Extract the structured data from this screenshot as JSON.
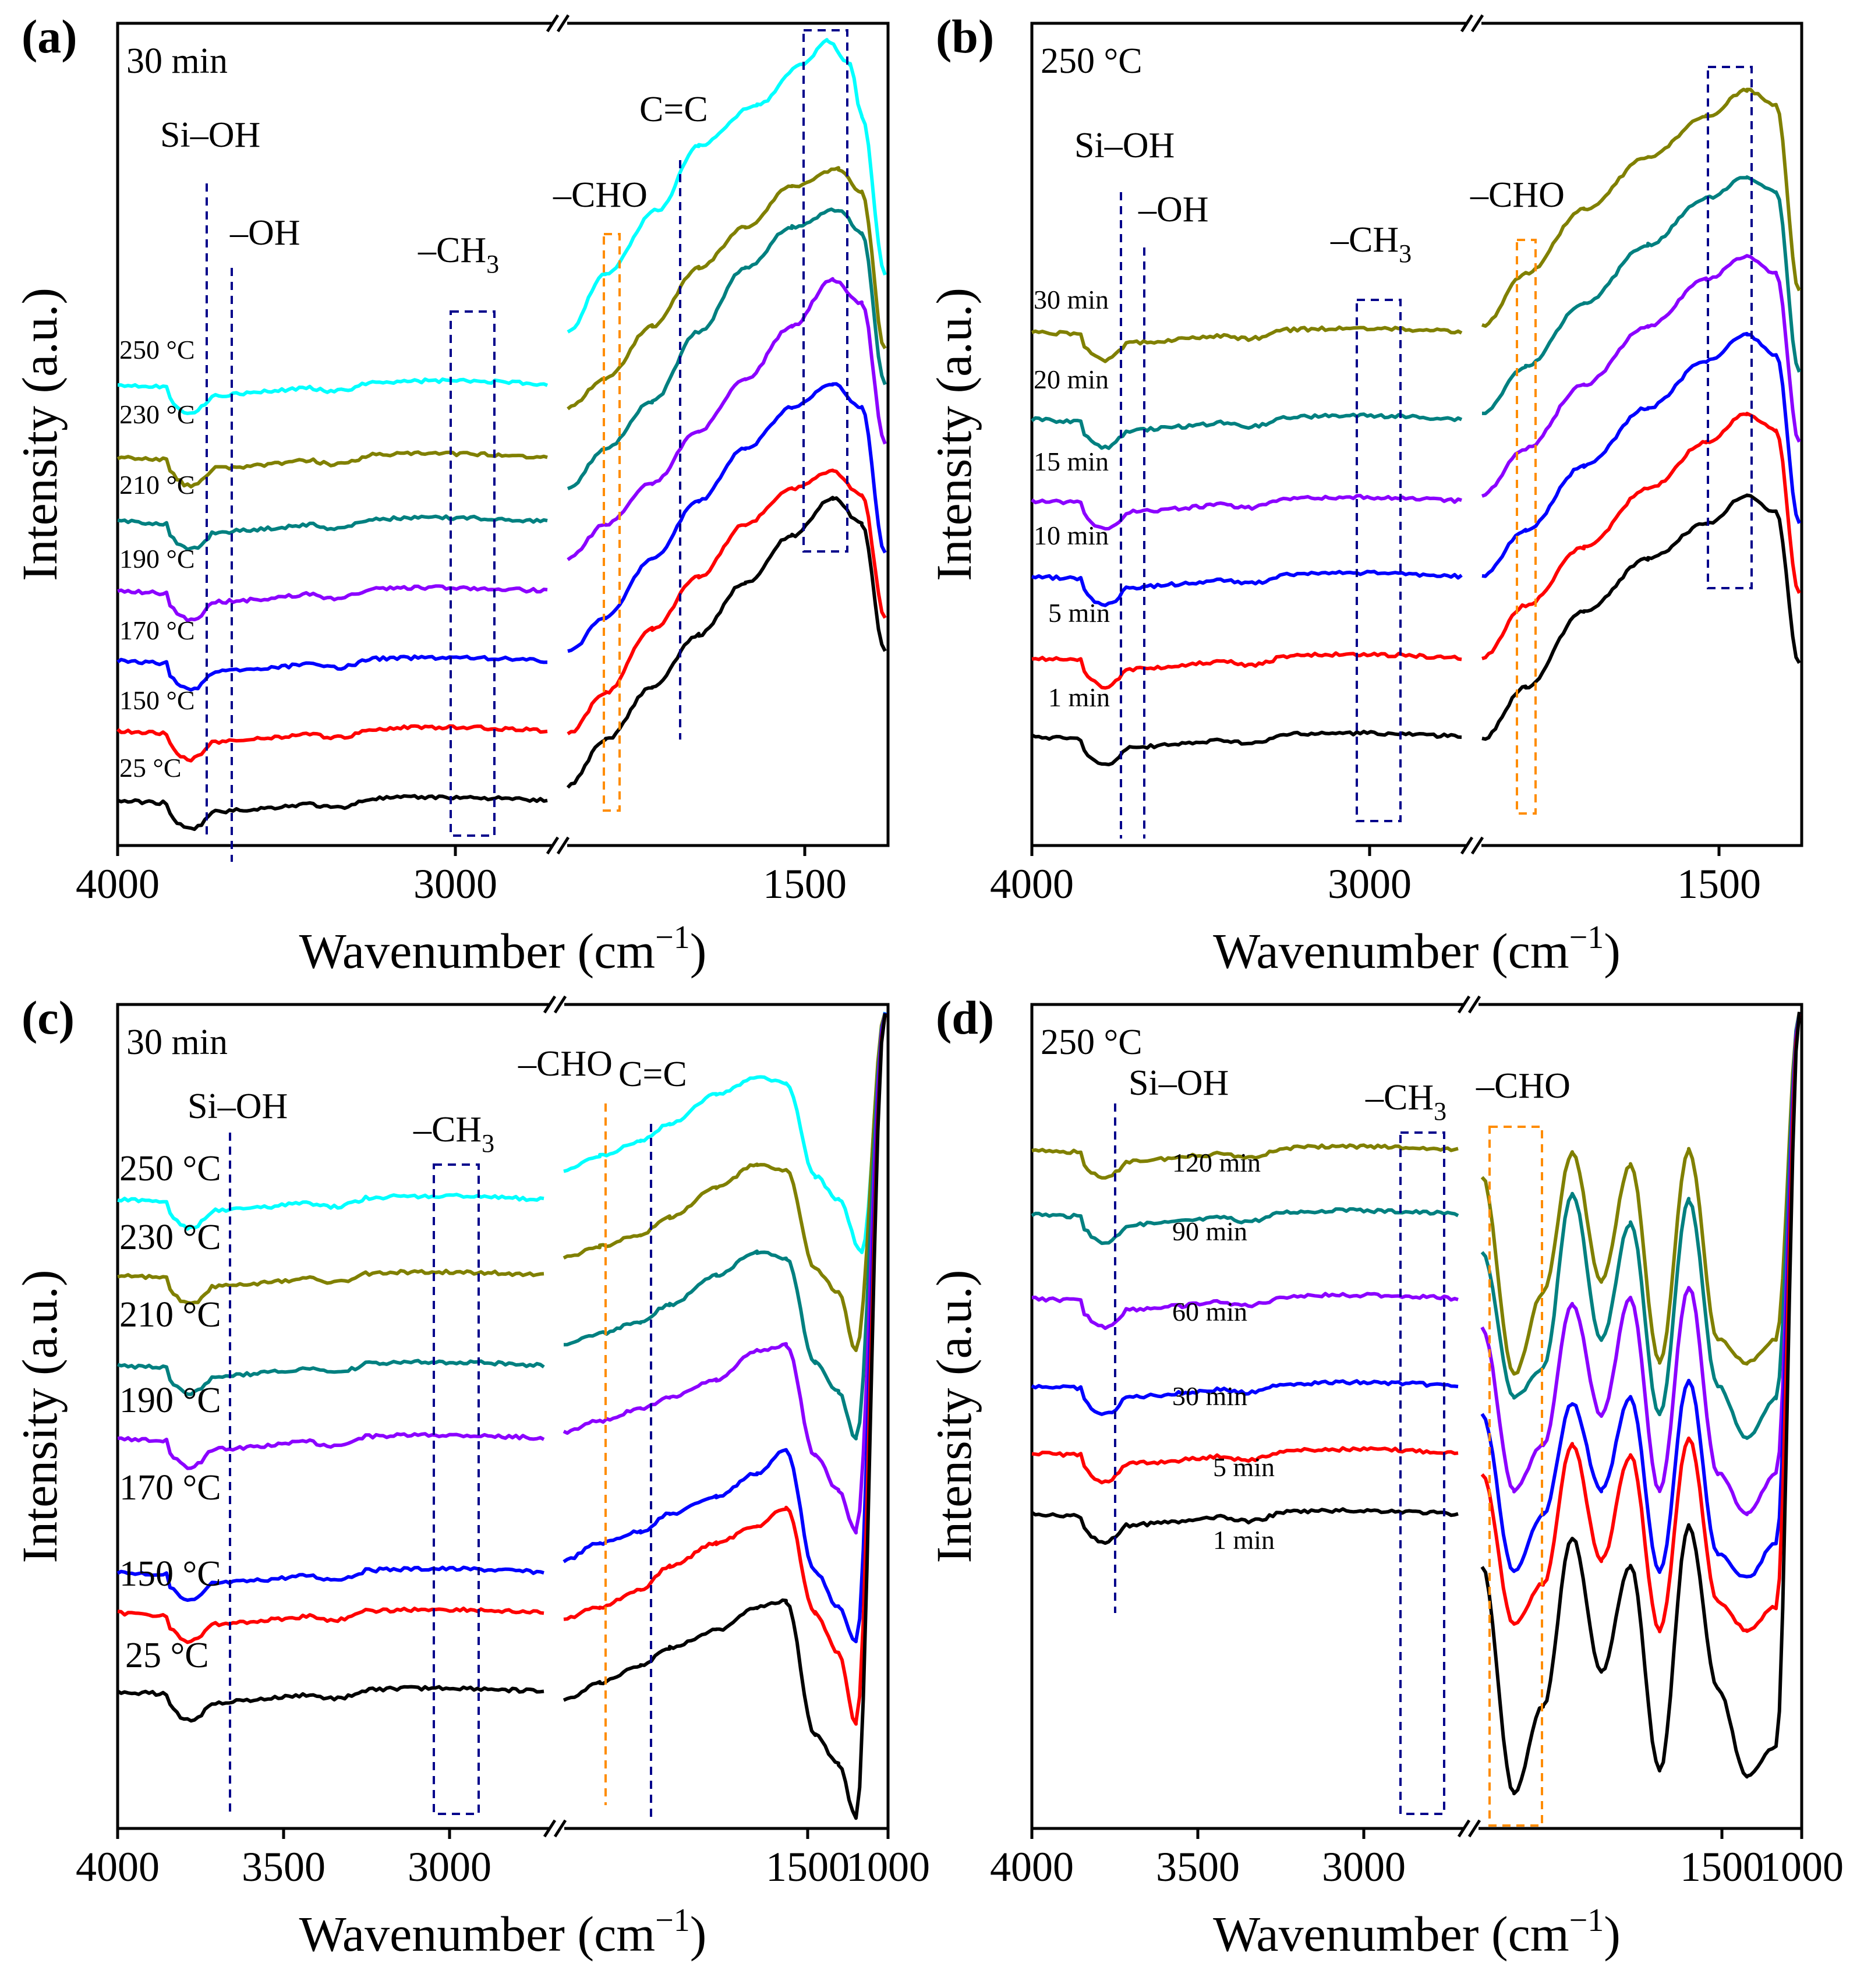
{
  "chart_data": [
    {
      "panel_label": "(a)",
      "type": "line",
      "condition": "30 min",
      "xlabel": "Wavenumber (cm−1)",
      "xlabel_text": "Wavenumber (cm",
      "xlabel_sup": "−1",
      "xlabel_close": ")",
      "ylabel": "Intensity (a.u.)",
      "x_ticks": [
        "4000",
        "3000",
        "1500"
      ],
      "broken_axis": true,
      "series_labels": [
        "250 °C",
        "230 °C",
        "210 °C",
        "190 °C",
        "170 °C",
        "150 °C",
        "25 °C"
      ],
      "annotations": [
        "Si–OH",
        "–OH",
        "–CH",
        "–CHO",
        "C=C"
      ],
      "series_colors": [
        "#00FFFF",
        "#808000",
        "#008080",
        "#8B00FF",
        "#0000FF",
        "#FF0000",
        "#000000"
      ]
    },
    {
      "panel_label": "(b)",
      "type": "line",
      "condition": "250 °C",
      "xlabel": "Wavenumber (cm−1)",
      "xlabel_text": "Wavenumber (cm",
      "xlabel_sup": "−1",
      "xlabel_close": ")",
      "ylabel": "Intensity (a.u.)",
      "x_ticks": [
        "4000",
        "3000",
        "1500"
      ],
      "broken_axis": true,
      "series_labels": [
        "30 min",
        "20 min",
        "15 min",
        "10 min",
        "5 min",
        "1 min"
      ],
      "annotations": [
        "Si–OH",
        "–OH",
        "–CH",
        "–CHO"
      ],
      "series_colors": [
        "#808000",
        "#008080",
        "#8B00FF",
        "#0000FF",
        "#FF0000",
        "#000000"
      ]
    },
    {
      "panel_label": "(c)",
      "type": "line",
      "condition": "30 min",
      "xlabel": "Wavenumber (cm−1)",
      "xlabel_text": "Wavenumber (cm",
      "xlabel_sup": "−1",
      "xlabel_close": ")",
      "ylabel": "Intensity (a.u.)",
      "x_ticks": [
        "4000",
        "3500",
        "3000",
        "1500",
        "1000"
      ],
      "broken_axis": true,
      "series_labels": [
        "250 °C",
        "230 °C",
        "210 °C",
        "190 °C",
        "170 °C",
        "150 °C",
        "25 °C"
      ],
      "annotations": [
        "Si–OH",
        "–CH",
        "–CHO",
        "C=C"
      ],
      "series_colors": [
        "#00FFFF",
        "#808000",
        "#008080",
        "#8B00FF",
        "#0000FF",
        "#FF0000",
        "#000000"
      ]
    },
    {
      "panel_label": "(d)",
      "type": "line",
      "condition": "250 °C",
      "xlabel": "Wavenumber (cm−1)",
      "xlabel_text": "Wavenumber (cm",
      "xlabel_sup": "−1",
      "xlabel_close": ")",
      "ylabel": "Intensity (a.u.)",
      "x_ticks": [
        "4000",
        "3500",
        "3000",
        "1500",
        "1000"
      ],
      "broken_axis": true,
      "series_labels": [
        "120 min",
        "90 min",
        "60 min",
        "30 min",
        "5 min",
        "1 min"
      ],
      "annotations": [
        "Si–OH",
        "–CH",
        "–CHO"
      ],
      "series_colors": [
        "#808000",
        "#008080",
        "#8B00FF",
        "#0000FF",
        "#FF0000",
        "#000000"
      ]
    }
  ],
  "subscript_3": "3"
}
